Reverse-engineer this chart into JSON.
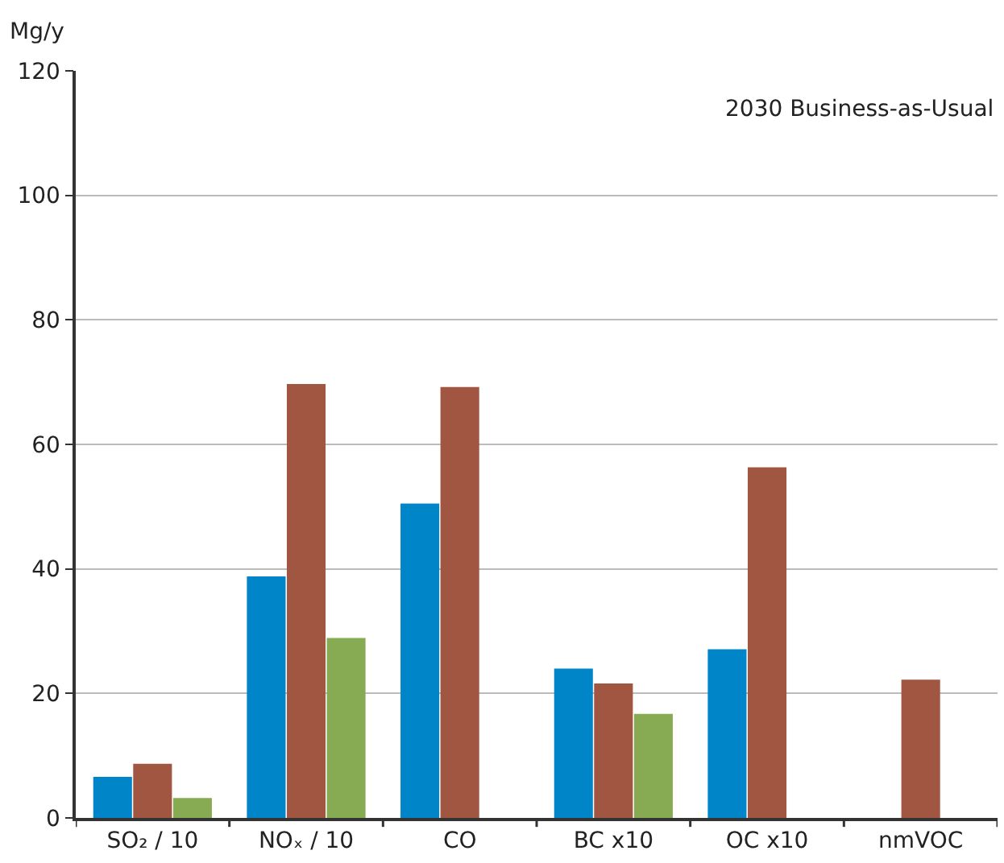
{
  "chart_data": {
    "type": "bar",
    "ylabel": "Mg/y",
    "annotations": [
      "2030 Business-as-Usual"
    ],
    "categories": [
      "SO₂ / 10",
      "NOₓ / 10",
      "CO",
      "BC x10",
      "OC x10",
      "nmVOC"
    ],
    "series": [
      {
        "color": "#0085c8",
        "values": [
          6.6,
          38.8,
          50.5,
          24.0,
          27.1,
          null
        ]
      },
      {
        "color": "#a05640",
        "values": [
          8.7,
          69.7,
          69.2,
          21.6,
          56.3,
          22.2
        ]
      },
      {
        "color": "#86ab52",
        "values": [
          3.2,
          28.9,
          null,
          16.7,
          null,
          null
        ]
      }
    ],
    "ylim": [
      0,
      120
    ],
    "yticks": [
      0,
      20,
      40,
      60,
      80,
      100,
      120
    ],
    "grid": "y"
  }
}
